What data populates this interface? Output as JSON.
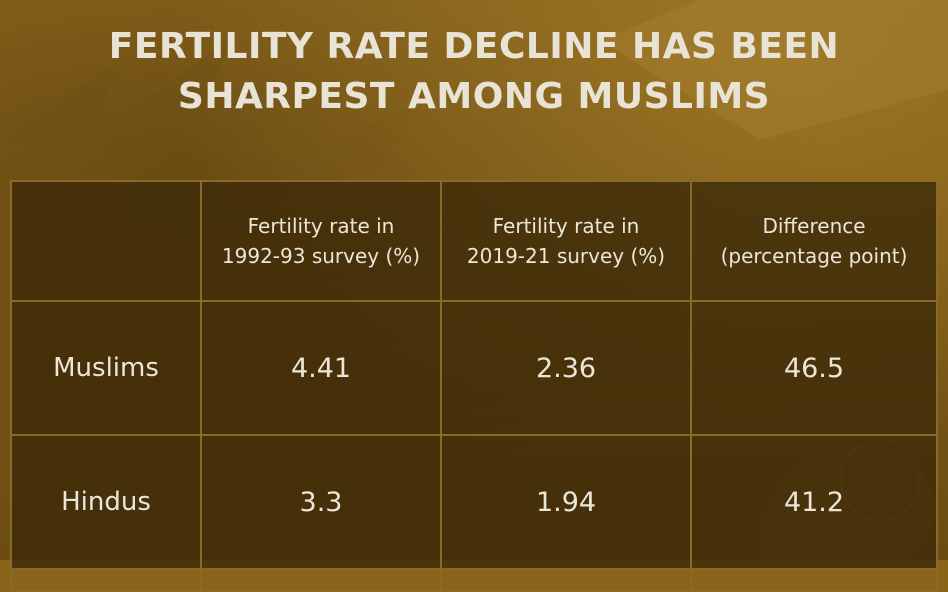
{
  "title": {
    "line1": "FERTILITY RATE DECLINE HAS BEEN",
    "line2": "SHARPEST AMONG MUSLIMS"
  },
  "chart_data": {
    "type": "table",
    "title": "FERTILITY RATE DECLINE HAS BEEN SHARPEST AMONG MUSLIMS",
    "columns": [
      "",
      "Fertility rate in 1992-93 survey (%)",
      "Fertility rate in 2019-21 survey (%)",
      "Difference (percentage point)"
    ],
    "header": [
      {
        "line1": "Fertility rate in",
        "line2": "1992-93 survey (%)"
      },
      {
        "line1": "Fertility rate in",
        "line2": "2019-21 survey (%)"
      },
      {
        "line1": "Difference",
        "line2": "(percentage point)"
      }
    ],
    "rows": [
      {
        "label": "Muslims",
        "values": [
          "4.41",
          "2.36",
          "46.5"
        ]
      },
      {
        "label": "Hindus",
        "values": [
          "3.3",
          "1.94",
          "41.2"
        ]
      }
    ]
  },
  "colors": {
    "background": "#8a6418",
    "table_fill": "#3a2808",
    "grid_line": "#8a6a2a",
    "text": "#ece6d8"
  }
}
